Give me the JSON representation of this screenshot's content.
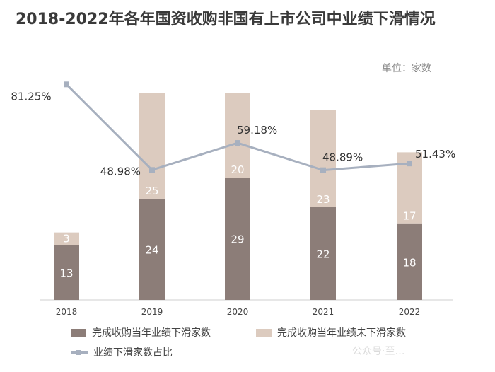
{
  "title": "2018-2022年各年国资收购非国有上市公司中业绩下滑情况",
  "unit_label": "单位：家数",
  "watermark": "公众号·至…",
  "colors": {
    "declined": "#8c7d78",
    "not_declined": "#dccbbf",
    "ratio": "#a7b0bf"
  },
  "chart_data": {
    "type": "bar",
    "title": "2018-2022年各年国资收购非国有上市公司中业绩下滑情况",
    "categories": [
      "2018",
      "2019",
      "2020",
      "2021",
      "2022"
    ],
    "series": [
      {
        "name": "完成收购当年业绩下滑家数",
        "kind": "stacked-bar",
        "values": [
          13,
          24,
          29,
          22,
          18
        ]
      },
      {
        "name": "完成收购当年业绩未下滑家数",
        "kind": "stacked-bar",
        "values": [
          3,
          25,
          20,
          23,
          17
        ]
      },
      {
        "name": "业绩下滑家数占比",
        "kind": "line",
        "values": [
          81.25,
          48.98,
          59.18,
          48.89,
          51.43
        ],
        "labels": [
          "81.25%",
          "48.98%",
          "59.18%",
          "48.89%",
          "51.43%"
        ]
      }
    ],
    "ylim": [
      0,
      50
    ],
    "ratio_ylim": [
      0,
      100
    ],
    "legend": "bottom"
  }
}
